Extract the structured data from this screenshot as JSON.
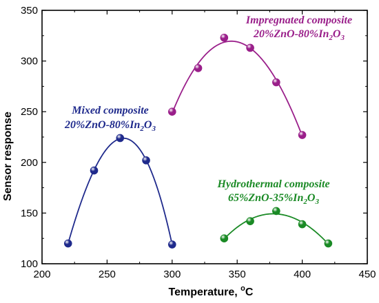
{
  "chart_data": {
    "type": "scatter",
    "title": "",
    "xlabel": "Temperature, ",
    "xlabel_unit": "C",
    "xlabel_unit_superscript": "o",
    "ylabel": "Sensor response",
    "xlim": [
      200,
      450
    ],
    "ylim": [
      100,
      350
    ],
    "xticks": [
      200,
      250,
      300,
      350,
      400,
      450
    ],
    "yticks": [
      100,
      150,
      200,
      250,
      300,
      350
    ],
    "grid": false,
    "legend": "none",
    "series": [
      {
        "name": "Mixed composite",
        "color": "#1f2a8c",
        "x": [
          220,
          240,
          260,
          280,
          300
        ],
        "y": [
          120,
          192,
          224,
          202,
          119
        ],
        "fit_curve": true
      },
      {
        "name": "Impregnated composite",
        "color": "#9a1f8a",
        "x": [
          300,
          320,
          340,
          360,
          380,
          400
        ],
        "y": [
          250,
          293,
          323,
          313,
          279,
          227
        ],
        "fit_curve": true
      },
      {
        "name": "Hydrothermal composite",
        "color": "#1a8a25",
        "x": [
          340,
          360,
          380,
          400,
          420
        ],
        "y": [
          125,
          142,
          152,
          139,
          120
        ],
        "fit_curve": true
      }
    ],
    "annotations": [
      {
        "series": 0,
        "line1": "Mixed composite",
        "line2": {
          "a": "20%ZnO-80%In",
          "sub1": "2",
          "b": "O",
          "sub2": "3"
        }
      },
      {
        "series": 1,
        "line1": "Impregnated composite",
        "line2": {
          "a": "20%ZnO-80%In",
          "sub1": "2",
          "b": "O",
          "sub2": "3"
        }
      },
      {
        "series": 2,
        "line1": "Hydrothermal composite",
        "line2": {
          "a": "65%ZnO-35%In",
          "sub1": "2",
          "b": "O",
          "sub2": "3"
        }
      }
    ]
  }
}
